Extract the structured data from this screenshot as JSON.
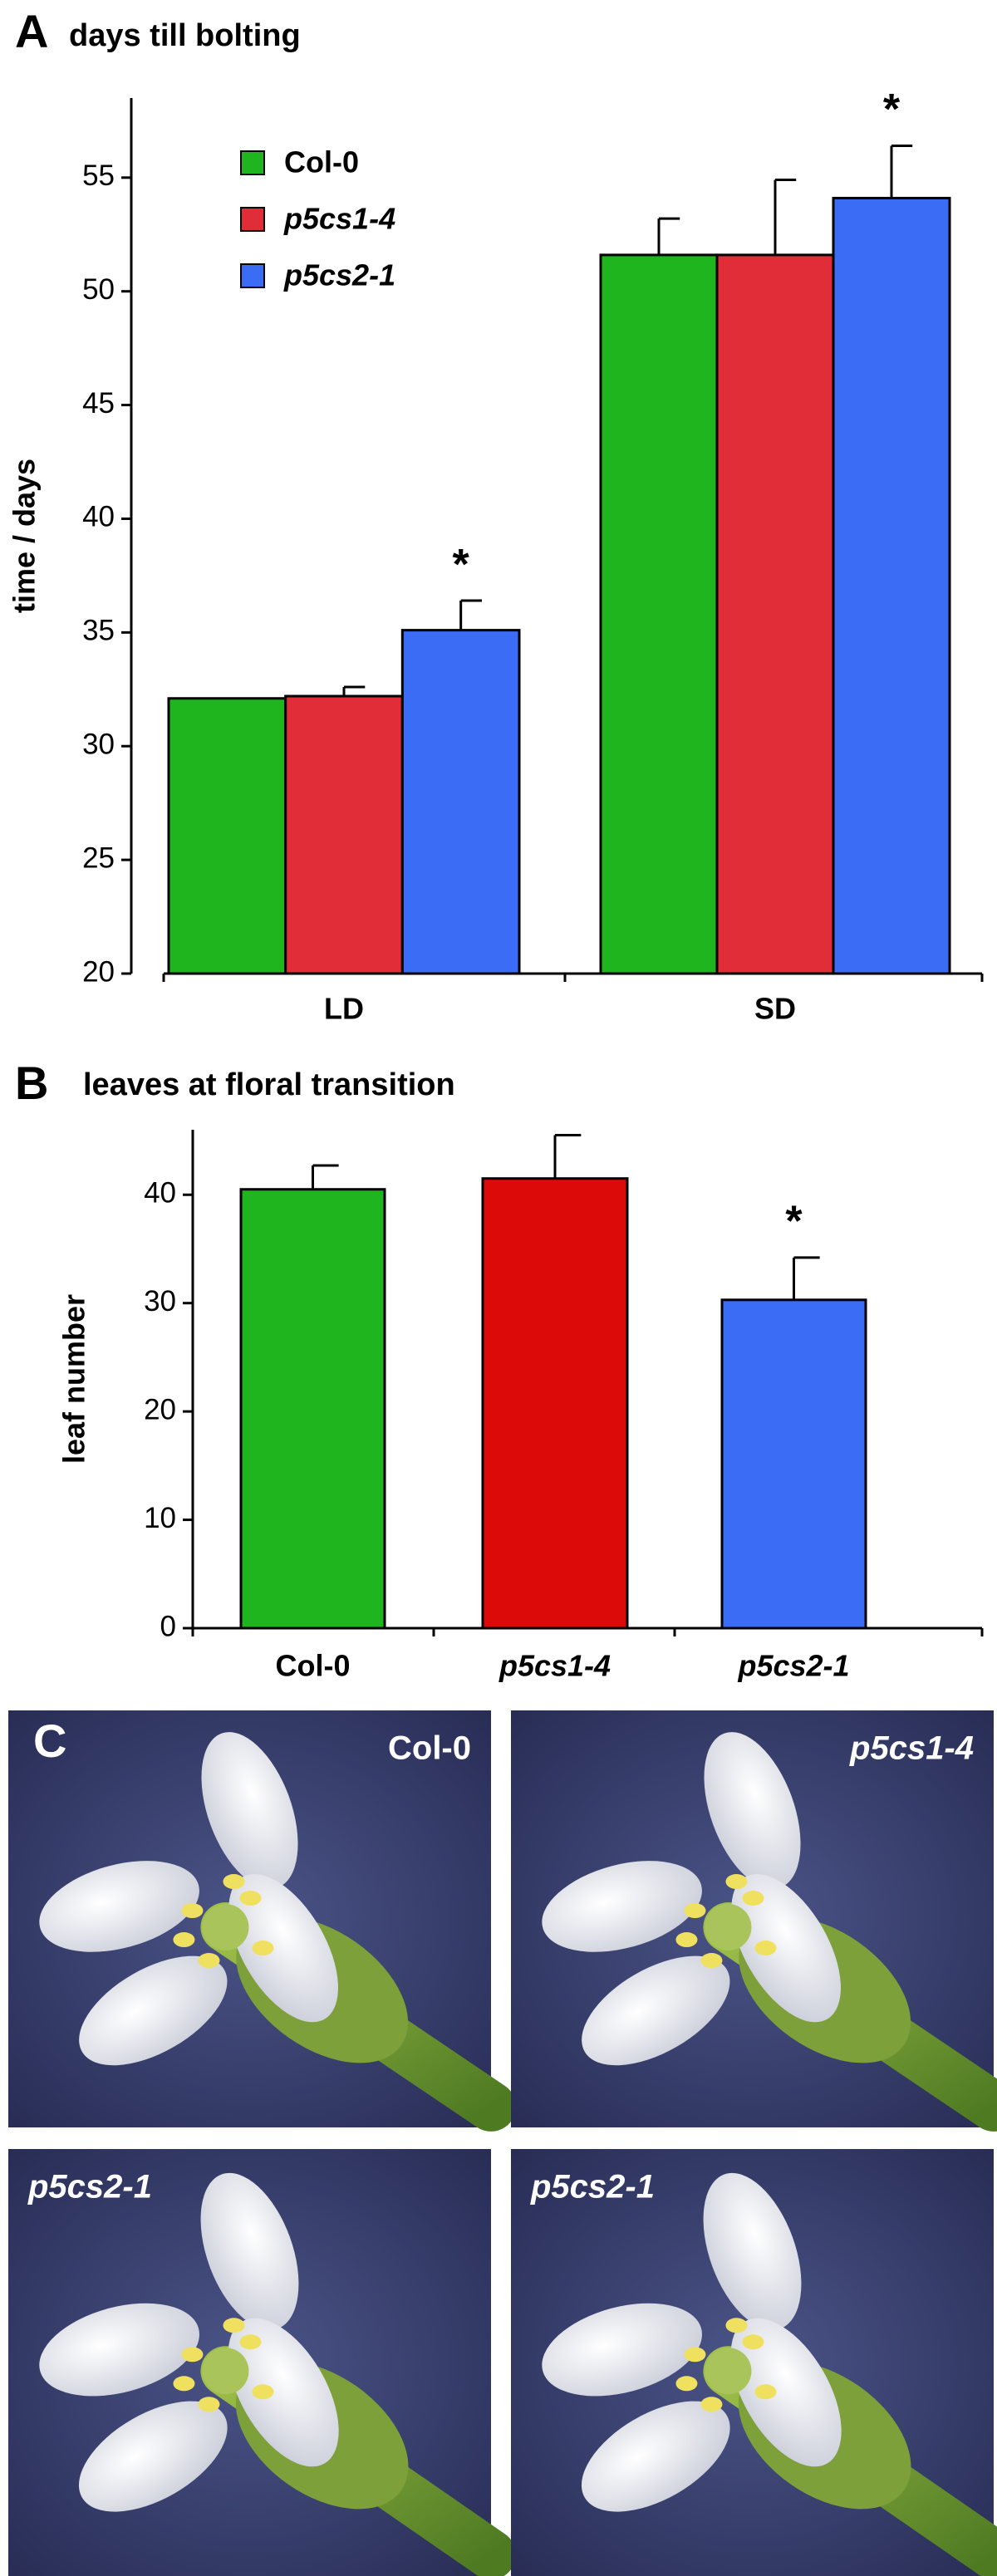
{
  "chart_data": [
    {
      "type": "bar",
      "panel": "A",
      "title": "days till bolting",
      "y_label": "time / days",
      "categories": [
        "LD",
        "SD"
      ],
      "series": [
        {
          "name": "Col-0",
          "color": "#1fb51f",
          "values": [
            32.1,
            51.6
          ],
          "errors": [
            0,
            1.6
          ]
        },
        {
          "name": "p5cs1-4",
          "color": "#e02d38",
          "values": [
            32.2,
            51.6
          ],
          "errors": [
            0.4,
            3.3
          ]
        },
        {
          "name": "p5cs2-1",
          "color": "#3b6cf5",
          "values": [
            35.1,
            54.1
          ],
          "errors": [
            1.3,
            2.3
          ]
        }
      ],
      "annotations": [
        {
          "text": "*",
          "series": 2,
          "category": 0
        },
        {
          "text": "*",
          "series": 2,
          "category": 1
        }
      ],
      "ylim": [
        20,
        58.5
      ],
      "yticks": [
        20,
        25,
        30,
        35,
        40,
        45,
        50,
        55
      ],
      "legend": "upper left"
    },
    {
      "type": "bar",
      "panel": "B",
      "title": "leaves at floral transition",
      "y_label": "leaf number",
      "categories": [
        "Col-0",
        "p5cs1-4",
        "p5cs2-1"
      ],
      "values": [
        40.5,
        41.5,
        30.3
      ],
      "errors": [
        2.2,
        4.0,
        3.9
      ],
      "colors": [
        "#1fb51f",
        "#dd0a0a",
        "#3b6cf5"
      ],
      "annotations": [
        {
          "text": "*",
          "category": 2
        }
      ],
      "ylim": [
        0,
        46
      ],
      "yticks": [
        0,
        10,
        20,
        30,
        40
      ]
    }
  ],
  "panel_c": {
    "letter": "C",
    "labels": [
      "Col-0",
      "p5cs1-4",
      "p5cs2-1",
      "p5cs2-1"
    ]
  }
}
